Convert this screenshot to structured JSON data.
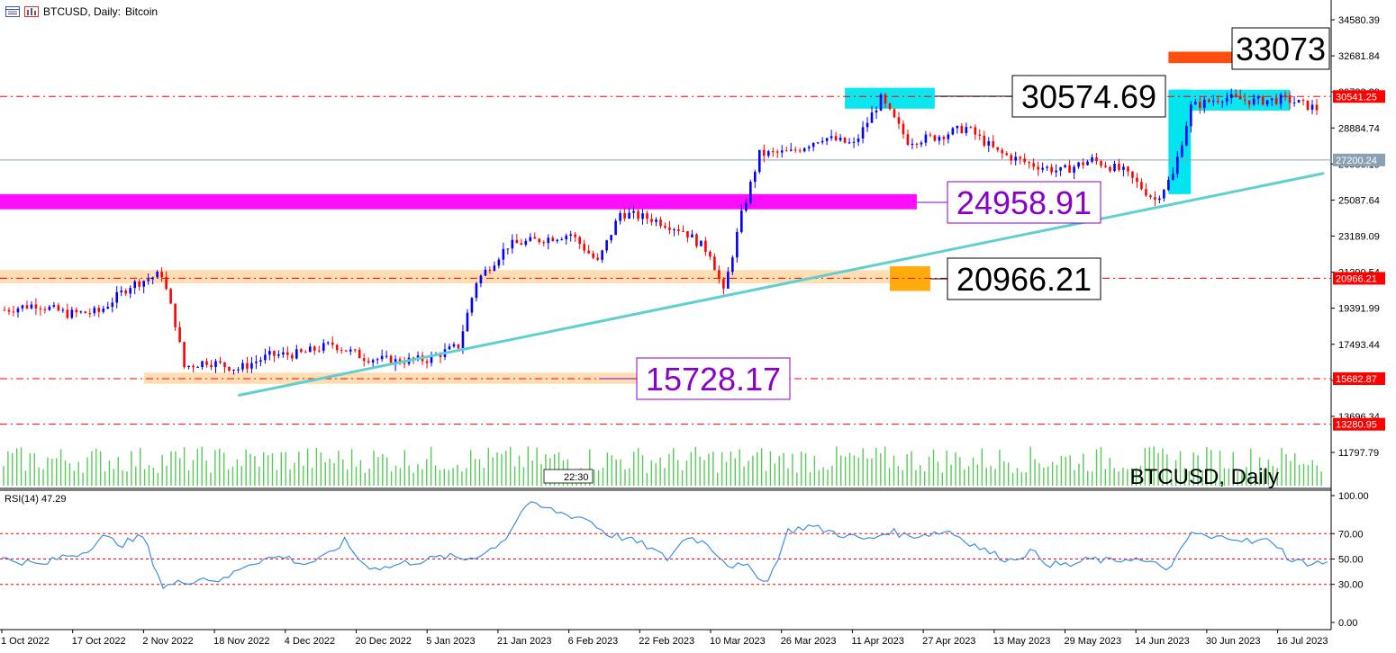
{
  "header": {
    "symbol": "BTCUSD, Daily:",
    "name": "Bitcoin",
    "icons": [
      "window-icon",
      "chart-icon"
    ]
  },
  "watermark": "BTCUSD, Daily",
  "time_badge": "22:30",
  "rsi_label": "RSI(14) 47.29",
  "callouts": {
    "top": "33073",
    "upper": "30574.69",
    "mid": "24958.91",
    "lower": "20966.21",
    "bottom": "15728.17"
  },
  "price_badges": [
    "30541.25",
    "27200.24",
    "20966.21",
    "15682.87",
    "13280.95"
  ],
  "colors": {
    "bull": "#0000ff",
    "bear": "#ff0000",
    "volume": "#55cc55",
    "magenta_zone": "#ff00ff",
    "orange_zone": "#ffa500",
    "peach_zone": "#ffdcb0",
    "cyan_zone": "#00e5ee",
    "top_zone": "#ff4500",
    "trendline": "#5fcfd0",
    "rsi_line": "#3d8ee0",
    "rsi_levels": "#ff0000",
    "mid_callout_text": "#8a00c8"
  },
  "chart_data": [
    {
      "type": "candlestick",
      "symbol": "BTCUSD",
      "timeframe": "Daily",
      "y_axis_ticks": [
        "34580.39",
        "32681.84",
        "30783.29",
        "28884.74",
        "26986.19",
        "25087.64",
        "23189.09",
        "21290.54",
        "19391.99",
        "17493.44",
        "15594.89",
        "13696.34",
        "11797.79"
      ],
      "x_axis_labels": [
        "1 Oct 2022",
        "17 Oct 2022",
        "2 Nov 2022",
        "18 Nov 2022",
        "4 Dec 2022",
        "20 Dec 2022",
        "5 Jan 2023",
        "21 Jan 2023",
        "6 Feb 2023",
        "22 Feb 2023",
        "10 Mar 2023",
        "26 Mar 2023",
        "11 Apr 2023",
        "27 Apr 2023",
        "13 May 2023",
        "29 May 2023",
        "14 Jun 2023",
        "30 Jun 2023",
        "16 Jul 2023"
      ],
      "ylim": [
        11797.79,
        34580.39
      ],
      "close_path": [
        {
          "date": "2022-10-01",
          "close": 19300
        },
        {
          "date": "2022-10-08",
          "close": 19600
        },
        {
          "date": "2022-10-15",
          "close": 19100
        },
        {
          "date": "2022-10-22",
          "close": 19200
        },
        {
          "date": "2022-10-29",
          "close": 20600
        },
        {
          "date": "2022-11-05",
          "close": 21200
        },
        {
          "date": "2022-11-08",
          "close": 18600
        },
        {
          "date": "2022-11-10",
          "close": 16300
        },
        {
          "date": "2022-11-15",
          "close": 16600
        },
        {
          "date": "2022-11-22",
          "close": 16200
        },
        {
          "date": "2022-11-29",
          "close": 16900
        },
        {
          "date": "2022-12-06",
          "close": 17000
        },
        {
          "date": "2022-12-13",
          "close": 17500
        },
        {
          "date": "2022-12-20",
          "close": 16800
        },
        {
          "date": "2022-12-27",
          "close": 16600
        },
        {
          "date": "2023-01-03",
          "close": 16700
        },
        {
          "date": "2023-01-10",
          "close": 17400
        },
        {
          "date": "2023-01-14",
          "close": 20800
        },
        {
          "date": "2023-01-21",
          "close": 22700
        },
        {
          "date": "2023-01-28",
          "close": 23000
        },
        {
          "date": "2023-02-04",
          "close": 23300
        },
        {
          "date": "2023-02-10",
          "close": 21800
        },
        {
          "date": "2023-02-15",
          "close": 24400
        },
        {
          "date": "2023-02-22",
          "close": 24100
        },
        {
          "date": "2023-03-01",
          "close": 23500
        },
        {
          "date": "2023-03-07",
          "close": 22300
        },
        {
          "date": "2023-03-10",
          "close": 20200
        },
        {
          "date": "2023-03-14",
          "close": 24300
        },
        {
          "date": "2023-03-18",
          "close": 27500
        },
        {
          "date": "2023-03-25",
          "close": 27600
        },
        {
          "date": "2023-04-01",
          "close": 28400
        },
        {
          "date": "2023-04-08",
          "close": 28000
        },
        {
          "date": "2023-04-14",
          "close": 30400
        },
        {
          "date": "2023-04-20",
          "close": 28200
        },
        {
          "date": "2023-04-26",
          "close": 28400
        },
        {
          "date": "2023-05-03",
          "close": 28900
        },
        {
          "date": "2023-05-10",
          "close": 27600
        },
        {
          "date": "2023-05-17",
          "close": 27000
        },
        {
          "date": "2023-05-24",
          "close": 26600
        },
        {
          "date": "2023-05-31",
          "close": 27200
        },
        {
          "date": "2023-06-07",
          "close": 26600
        },
        {
          "date": "2023-06-14",
          "close": 25100
        },
        {
          "date": "2023-06-18",
          "close": 26400
        },
        {
          "date": "2023-06-22",
          "close": 30000
        },
        {
          "date": "2023-06-29",
          "close": 30500
        },
        {
          "date": "2023-07-06",
          "close": 30300
        },
        {
          "date": "2023-07-13",
          "close": 30400
        },
        {
          "date": "2023-07-20",
          "close": 29900
        }
      ],
      "horizontal_levels": [
        30541.25,
        27200.24,
        20966.21,
        15682.87,
        13280.95
      ],
      "zones": [
        {
          "color": "magenta",
          "from": 24600,
          "to": 25400
        },
        {
          "color": "peach",
          "from": 20700,
          "to": 21400
        },
        {
          "color": "peach",
          "from": 15400,
          "to": 16000
        },
        {
          "color": "cyan",
          "from": 29900,
          "to": 31000
        },
        {
          "color": "cyan",
          "from": 29800,
          "to": 30900
        },
        {
          "color": "orange",
          "from": 20300,
          "to": 21600
        },
        {
          "color": "orange-red",
          "from": 32300,
          "to": 32900
        }
      ],
      "trendline": [
        {
          "date": "2022-11-22",
          "close": 14800
        },
        {
          "date": "2023-07-20",
          "close": 26500
        }
      ]
    },
    {
      "type": "line",
      "name": "RSI(14)",
      "ylim": [
        0,
        100
      ],
      "y_axis_ticks": [
        "100.00",
        "70.00",
        "50.00",
        "30.00",
        "0.00"
      ],
      "levels": [
        70,
        50,
        30
      ],
      "current": 47.29,
      "values": [
        50,
        48,
        45,
        52,
        55,
        67,
        62,
        68,
        28,
        32,
        35,
        33,
        45,
        50,
        52,
        46,
        51,
        64,
        45,
        43,
        47,
        49,
        52,
        50,
        55,
        67,
        93,
        90,
        85,
        82,
        70,
        66,
        60,
        50,
        68,
        62,
        46,
        43,
        32,
        72,
        76,
        72,
        68,
        65,
        72,
        68,
        70,
        72,
        63,
        55,
        49,
        56,
        46,
        45,
        50,
        48,
        51,
        46,
        43,
        71,
        66,
        68,
        63,
        65,
        48,
        47
      ]
    }
  ]
}
